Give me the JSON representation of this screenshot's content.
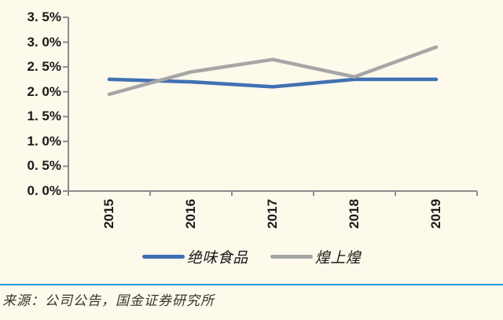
{
  "chart_data": {
    "type": "line",
    "title": "",
    "xlabel": "",
    "ylabel": "",
    "x": [
      "2015",
      "2016",
      "2017",
      "2018",
      "2019"
    ],
    "series": [
      {
        "name": "绝味食品",
        "color": "#4170B3",
        "values": [
          2.25,
          2.2,
          2.1,
          2.25,
          2.25
        ]
      },
      {
        "name": "煌上煌",
        "color": "#A6A6A6",
        "values": [
          1.95,
          2.4,
          2.65,
          2.3,
          2.9
        ]
      }
    ],
    "ylim": [
      0,
      3.5
    ],
    "ytick_step": 0.5,
    "ytick_labels": [
      "0. 0%",
      "0. 5%",
      "1. 0%",
      "1. 5%",
      "2. 0%",
      "2. 5%",
      "3. 0%",
      "3. 5%"
    ],
    "grid": false,
    "legend_position": "bottom"
  },
  "footer": {
    "source_text": "来源：公司公告，国金证券研究所",
    "separator_color": "#1F9BD8"
  },
  "colors": {
    "background": "#FDF9EB",
    "axis": "#8C8C8C",
    "tick_label": "#1A1A1A"
  }
}
